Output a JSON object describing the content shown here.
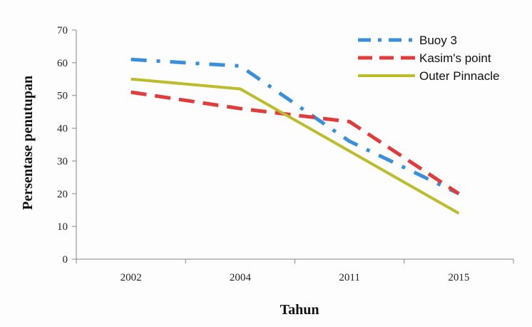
{
  "chart_data": {
    "type": "line",
    "title": "",
    "xlabel": "Tahun",
    "ylabel": "Persentase penutupan",
    "categories": [
      "2002",
      "2004",
      "2011",
      "2015"
    ],
    "ylim": [
      0,
      70
    ],
    "yticks": [
      0,
      10,
      20,
      30,
      40,
      50,
      60,
      70
    ],
    "grid": false,
    "legend_position": "top-right",
    "series": [
      {
        "name": "Buoy 3",
        "values": [
          61,
          59,
          36,
          20
        ],
        "color": "#3a8fd9",
        "style": "dash-dot"
      },
      {
        "name": "Kasim's point",
        "values": [
          51,
          46,
          42,
          20
        ],
        "color": "#e03c3c",
        "style": "dashed"
      },
      {
        "name": "Outer Pinnacle",
        "values": [
          55,
          52,
          33,
          14
        ],
        "color": "#bcbc2c",
        "style": "solid"
      }
    ]
  }
}
